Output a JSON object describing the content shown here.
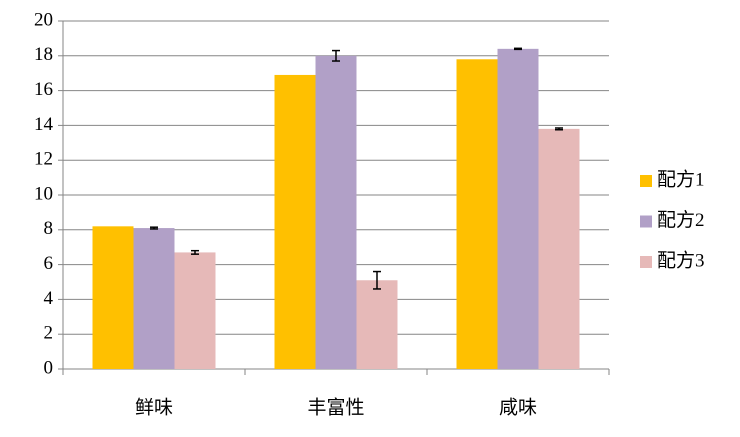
{
  "chart_data": {
    "type": "bar",
    "categories": [
      "鲜味",
      "丰富性",
      "咸味"
    ],
    "series": [
      {
        "name": "配方1",
        "color": "#ffc000",
        "values": [
          8.2,
          16.9,
          17.8
        ]
      },
      {
        "name": "配方2",
        "color": "#b1a0c7",
        "values": [
          8.1,
          18.0,
          18.4
        ],
        "errors": [
          0.05,
          0.3,
          0.03
        ]
      },
      {
        "name": "配方3",
        "color": "#e6b9b8",
        "values": [
          6.7,
          5.1,
          13.8
        ],
        "errors": [
          0.1,
          0.5,
          0.05
        ]
      }
    ],
    "ylim": [
      0,
      20
    ],
    "yticks": [
      0,
      2,
      4,
      6,
      8,
      10,
      12,
      14,
      16,
      18,
      20
    ],
    "grid": true,
    "legend": "right"
  }
}
